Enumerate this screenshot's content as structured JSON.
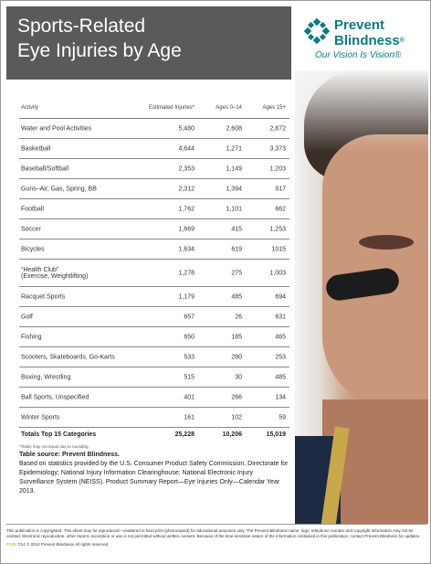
{
  "title": {
    "line1": "Sports-Related",
    "line2": "Eye Injuries by Age"
  },
  "logo": {
    "brand_line1": "Prevent",
    "brand_line2": "Blindness",
    "registered": "®",
    "tagline": "Our Vision Is Vision®",
    "accent": "#0a7a86"
  },
  "table": {
    "headers": [
      "Activity",
      "Estimated Injuries*",
      "Ages 0–14",
      "Ages 15+"
    ],
    "rows": [
      {
        "activity": "Water and Pool Activities",
        "estimated": "5,480",
        "ages_0_14": "2,608",
        "ages_15": "2,872"
      },
      {
        "activity": "Basketball",
        "estimated": "4,644",
        "ages_0_14": "1,271",
        "ages_15": "3,373"
      },
      {
        "activity": "Baseball/Softball",
        "estimated": "2,353",
        "ages_0_14": "1,149",
        "ages_15": "1,203"
      },
      {
        "activity": "Guns–Air, Gas, Spring, BB",
        "estimated": "2,312",
        "ages_0_14": "1,394",
        "ages_15": "917"
      },
      {
        "activity": "Football",
        "estimated": "1,762",
        "ages_0_14": "1,101",
        "ages_15": "662"
      },
      {
        "activity": "Soccer",
        "estimated": "1,669",
        "ages_0_14": "415",
        "ages_15": "1,253"
      },
      {
        "activity": "Bicycles",
        "estimated": "1,634",
        "ages_0_14": "619",
        "ages_15": "1015"
      },
      {
        "activity": "“Health Club”",
        "activity2": "(Exercise, Weightlifting)",
        "estimated": "1,278",
        "ages_0_14": "275",
        "ages_15": "1,003"
      },
      {
        "activity": "Racquet Sports",
        "estimated": "1,179",
        "ages_0_14": "485",
        "ages_15": "694"
      },
      {
        "activity": "Golf",
        "estimated": "657",
        "ages_0_14": "26",
        "ages_15": "631"
      },
      {
        "activity": "Fishing",
        "estimated": "650",
        "ages_0_14": "185",
        "ages_15": "465"
      },
      {
        "activity": "Scooters, Skateboards, Go-Karts",
        "estimated": "533",
        "ages_0_14": "280",
        "ages_15": "253"
      },
      {
        "activity": "Boxing, Wrestling",
        "estimated": "515",
        "ages_0_14": "30",
        "ages_15": "485"
      },
      {
        "activity": "Ball Sports, Unspecified",
        "estimated": "401",
        "ages_0_14": "266",
        "ages_15": "134"
      },
      {
        "activity": "Winter Sports",
        "estimated": "161",
        "ages_0_14": "102",
        "ages_15": "59"
      }
    ],
    "total": {
      "label": "Totals Top 15 Categories",
      "estimated": "25,228",
      "ages_0_14": "10,206",
      "ages_15": "15,019"
    },
    "note": "*Totals may not equal due to rounding."
  },
  "source": {
    "title": "Table source: Prevent Blindness.",
    "body": "Based on statistics provided by the U.S. Consumer Product Safety Commission, Directorate for Epidemiology; National Injury Information Clearinghouse; National Electronic Injury Surveillance System (NEISS). Product Summary Report—Eye Injuries Only—Calendar Year 2013."
  },
  "footer": {
    "text": "This publication is copyrighted. This sheet may be reproduced—unaltered in hard print (photocopied) for educational purposes only. The Prevent Blindness name, logo, telephone number and copyright information may not be omitted. Electronic reproduction, other reprint, excerption or use is not permitted without written consent. Because of the time-sensitive nature of the information contained in this publication, contact Prevent Blindness for updates.",
    "code": "FS09",
    "rest": "7/14 © 2014 Prevent Blindness All rights reserved."
  }
}
